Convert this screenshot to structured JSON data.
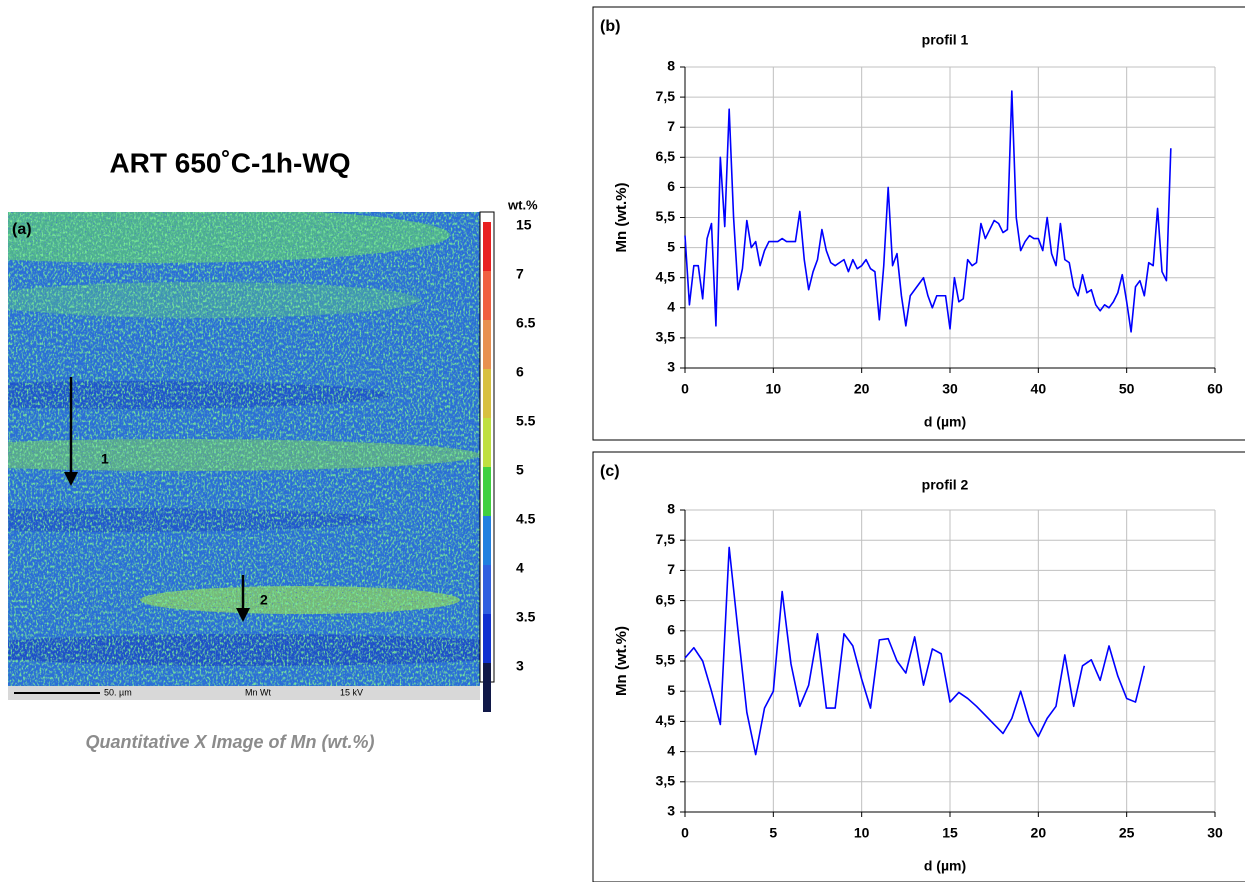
{
  "panel_a": {
    "title": "ART 650˚C-1h-WQ",
    "label": "(a)",
    "unit": "wt.%",
    "colorbar": [
      15,
      7,
      6.5,
      6,
      5.5,
      5,
      4.5,
      4,
      3.5,
      3
    ],
    "scale_bar": "50. µm",
    "signal": "Mn Wt",
    "voltage": "15 kV",
    "arrows": [
      "1",
      "2"
    ],
    "caption": "Quantitative X Image of Mn  (wt.%)"
  },
  "chart_data": [
    {
      "type": "line",
      "panel_label": "(b)",
      "title": "profil 1",
      "xlabel": "d (µm)",
      "ylabel": "Mn (wt.%)",
      "color": "#0000ff",
      "grid": true,
      "xlim": [
        0,
        60
      ],
      "xticks": [
        0,
        10,
        20,
        30,
        40,
        50,
        60
      ],
      "ylim": [
        3,
        8
      ],
      "yticks": [
        3,
        {
          "value": 3.5,
          "label": "3,5"
        },
        4,
        {
          "value": 4.5,
          "label": "4,5"
        },
        5,
        {
          "value": 5.5,
          "label": "5,5"
        },
        6,
        {
          "value": 6.5,
          "label": "6,5"
        },
        7,
        {
          "value": 7.5,
          "label": "7,5"
        },
        8
      ],
      "x": [
        0,
        0.5,
        1,
        1.5,
        2,
        2.5,
        3,
        3.5,
        4,
        4.5,
        5,
        5.5,
        6,
        6.5,
        7,
        7.5,
        8,
        8.5,
        9,
        9.5,
        10,
        10.5,
        11,
        11.5,
        12,
        12.5,
        13,
        13.5,
        14,
        14.5,
        15,
        15.5,
        16,
        16.5,
        17,
        17.5,
        18,
        18.5,
        19,
        19.5,
        20,
        20.5,
        21,
        21.5,
        22,
        22.5,
        23,
        23.5,
        24,
        24.5,
        25,
        25.5,
        26,
        26.5,
        27,
        27.5,
        28,
        28.5,
        29,
        29.5,
        30,
        30.5,
        31,
        31.5,
        32,
        32.5,
        33,
        33.5,
        34,
        34.5,
        35,
        35.5,
        36,
        36.5,
        37,
        37.5,
        38,
        38.5,
        39,
        39.5,
        40,
        40.5,
        41,
        41.5,
        42,
        42.5,
        43,
        43.5,
        44,
        44.5,
        45,
        45.5,
        46,
        46.5,
        47,
        47.5,
        48,
        48.5,
        49,
        49.5,
        50,
        50.5,
        51,
        51.5,
        52,
        52.5,
        53,
        53.5,
        54,
        54.5,
        55
      ],
      "values": [
        5.2,
        4.05,
        4.7,
        4.7,
        4.15,
        5.15,
        5.4,
        3.7,
        6.5,
        5.35,
        7.3,
        5.5,
        4.3,
        4.65,
        5.45,
        5.0,
        5.1,
        4.7,
        4.95,
        5.1,
        5.1,
        5.1,
        5.15,
        5.1,
        5.1,
        5.1,
        5.6,
        4.8,
        4.3,
        4.6,
        4.8,
        5.3,
        4.95,
        4.75,
        4.7,
        4.75,
        4.8,
        4.6,
        4.8,
        4.65,
        4.7,
        4.8,
        4.65,
        4.6,
        3.8,
        4.7,
        6.0,
        4.7,
        4.9,
        4.2,
        3.7,
        4.2,
        4.3,
        4.4,
        4.5,
        4.2,
        4.0,
        4.2,
        4.2,
        4.2,
        3.65,
        4.5,
        4.1,
        4.15,
        4.8,
        4.7,
        4.75,
        5.4,
        5.15,
        5.3,
        5.45,
        5.4,
        5.25,
        5.3,
        7.6,
        5.5,
        4.95,
        5.1,
        5.2,
        5.15,
        5.15,
        4.95,
        5.5,
        4.9,
        4.7,
        5.4,
        4.8,
        4.75,
        4.35,
        4.2,
        4.55,
        4.25,
        4.3,
        4.05,
        3.95,
        4.05,
        4.0,
        4.1,
        4.25,
        4.55,
        4.1,
        3.6,
        4.35,
        4.45,
        4.2,
        4.75,
        4.7,
        5.65,
        4.6,
        4.45,
        6.65
      ]
    },
    {
      "type": "line",
      "panel_label": "(c)",
      "title": "profil 2",
      "xlabel": "d (µm)",
      "ylabel": "Mn (wt.%)",
      "color": "#0000ff",
      "grid": true,
      "xlim": [
        0,
        30
      ],
      "xticks": [
        0,
        5,
        10,
        15,
        20,
        25,
        30
      ],
      "ylim": [
        3,
        8
      ],
      "yticks": [
        3,
        {
          "value": 3.5,
          "label": "3,5"
        },
        4,
        {
          "value": 4.5,
          "label": "4,5"
        },
        5,
        {
          "value": 5.5,
          "label": "5,5"
        },
        6,
        {
          "value": 6.5,
          "label": "6,5"
        },
        7,
        {
          "value": 7.5,
          "label": "7,5"
        },
        8
      ],
      "x": [
        0,
        0.5,
        1,
        1.5,
        2,
        2.5,
        3,
        3.5,
        4,
        4.5,
        5,
        5.5,
        6,
        6.5,
        7,
        7.5,
        8,
        8.5,
        9,
        9.5,
        10,
        10.5,
        11,
        11.5,
        12,
        12.5,
        13,
        13.5,
        14,
        14.5,
        15,
        15.5,
        16,
        16.5,
        17,
        17.5,
        18,
        18.5,
        19,
        19.5,
        20,
        20.5,
        21,
        21.5,
        22,
        22.5,
        23,
        23.5,
        24,
        24.5,
        25,
        25.5,
        26
      ],
      "values": [
        5.55,
        5.72,
        5.5,
        5.0,
        4.45,
        7.38,
        6.0,
        4.65,
        3.95,
        4.72,
        5.0,
        6.65,
        5.45,
        4.75,
        5.1,
        5.95,
        4.72,
        4.72,
        5.95,
        5.75,
        5.2,
        4.72,
        5.85,
        5.87,
        5.5,
        5.3,
        5.9,
        5.1,
        5.7,
        5.62,
        4.82,
        4.98,
        4.88,
        4.75,
        4.6,
        4.45,
        4.3,
        4.55,
        5.0,
        4.5,
        4.25,
        4.55,
        4.75,
        5.6,
        4.75,
        5.42,
        5.52,
        5.18,
        5.75,
        5.25,
        4.88,
        4.82,
        5.42
      ]
    }
  ]
}
